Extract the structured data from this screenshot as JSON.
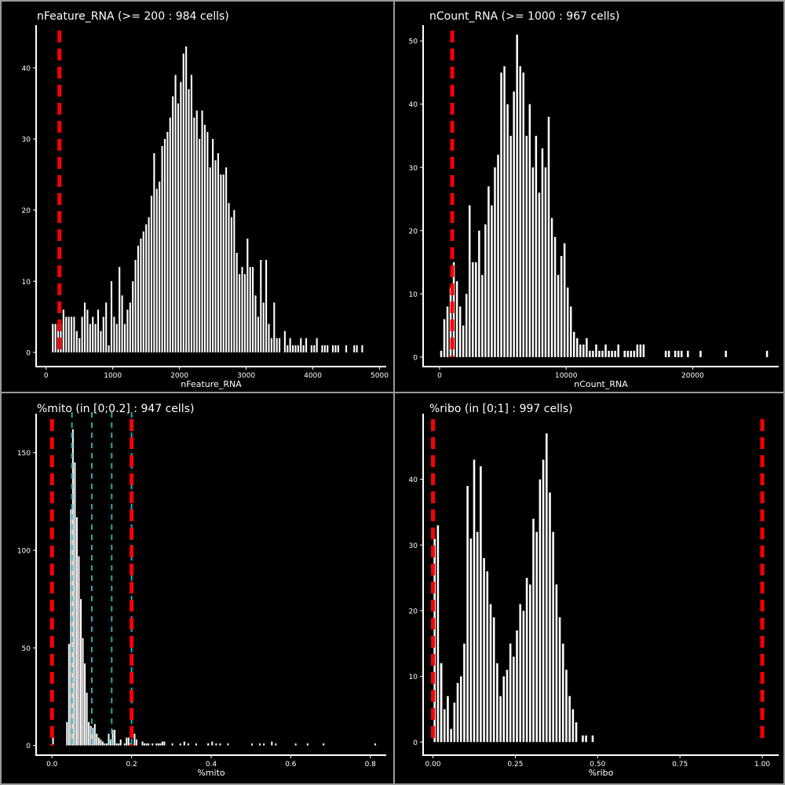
{
  "chart_data": [
    {
      "type": "bar",
      "title": "nFeature_RNA (>= 200 : 984 cells)",
      "xlabel": "nFeature_RNA",
      "ylabel": "",
      "xlim": [
        -150,
        5100
      ],
      "ylim": [
        -2,
        46
      ],
      "xticks": [
        0,
        1000,
        2000,
        3000,
        4000,
        5000
      ],
      "xtick_labels": [
        "0",
        "1000",
        "2000",
        "3000",
        "4000",
        "5000"
      ],
      "yticks": [
        0,
        10,
        20,
        30,
        40
      ],
      "ytick_labels": [
        "0",
        "10",
        "20",
        "30",
        "40"
      ],
      "bin_width": 40,
      "bins_x": [
        80,
        120,
        160,
        200,
        240,
        280,
        320,
        360,
        400,
        440,
        480,
        520,
        560,
        600,
        640,
        680,
        720,
        760,
        800,
        840,
        880,
        920,
        960,
        1000,
        1040,
        1080,
        1120,
        1160,
        1200,
        1240,
        1280,
        1320,
        1360,
        1400,
        1440,
        1480,
        1520,
        1560,
        1600,
        1640,
        1680,
        1720,
        1760,
        1800,
        1840,
        1880,
        1920,
        1960,
        2000,
        2040,
        2080,
        2120,
        2160,
        2200,
        2240,
        2280,
        2320,
        2360,
        2400,
        2440,
        2480,
        2520,
        2560,
        2600,
        2640,
        2680,
        2720,
        2760,
        2800,
        2840,
        2880,
        2920,
        2960,
        3000,
        3040,
        3080,
        3120,
        3160,
        3200,
        3240,
        3280,
        3320,
        3360,
        3400,
        3440,
        3480,
        3520,
        3560,
        3600,
        3640,
        3680,
        3720,
        3760,
        3800,
        3840,
        3880,
        3920,
        3960,
        4000,
        4040,
        4080,
        4120,
        4160,
        4200,
        4240,
        4280,
        4320,
        4360,
        4400,
        4440,
        4480,
        4520,
        4560,
        4600,
        4640,
        4680,
        4720,
        4760,
        4800,
        4840,
        4880
      ],
      "counts": [
        4,
        4,
        4,
        4,
        6,
        5,
        5,
        5,
        5,
        3,
        2,
        5,
        7,
        6,
        4,
        5,
        4,
        6,
        3,
        5,
        7,
        1,
        10,
        5,
        4,
        12,
        8,
        4,
        6,
        7,
        10,
        13,
        15,
        16,
        17,
        18,
        19,
        22,
        28,
        23,
        24,
        29,
        30,
        31,
        33,
        36,
        39,
        35,
        38,
        42,
        43,
        37,
        39,
        33,
        34,
        30,
        34,
        32,
        31,
        26,
        30,
        27,
        28,
        25,
        25,
        26,
        21,
        19,
        20,
        14,
        11,
        12,
        11,
        16,
        12,
        12,
        8,
        5,
        13,
        7,
        13,
        4,
        2,
        7,
        2,
        2,
        0,
        3,
        1,
        2,
        1,
        1,
        1,
        2,
        1,
        2,
        0,
        1,
        1,
        2,
        0,
        1,
        1,
        1,
        0,
        1,
        1,
        1,
        0,
        0,
        0,
        0,
        0,
        0,
        0,
        0,
        0,
        0,
        0,
        0,
        0
      ],
      "sparse_x": [
        4480,
        4600,
        4640,
        4720
      ],
      "sparse_counts": [
        1,
        1,
        1,
        1
      ],
      "threshold_lines": [
        200
      ]
    },
    {
      "type": "bar",
      "title": "nCount_RNA (>= 1000 : 967 cells)",
      "xlabel": "nCount_RNA",
      "ylabel": "",
      "xlim": [
        -1300,
        26800
      ],
      "ylim": [
        -1.5,
        52.5
      ],
      "xticks": [
        0,
        10000,
        20000
      ],
      "xtick_labels": [
        "0",
        "10000",
        "20000"
      ],
      "yticks": [
        0,
        10,
        20,
        30,
        40,
        50
      ],
      "ytick_labels": [
        "0",
        "10",
        "20",
        "30",
        "40",
        "50"
      ],
      "bin_width": 250,
      "bins_x": [
        0,
        250,
        500,
        750,
        1000,
        1250,
        1500,
        1750,
        2000,
        2250,
        2500,
        2750,
        3000,
        3250,
        3500,
        3750,
        4000,
        4250,
        4500,
        4750,
        5000,
        5250,
        5500,
        5750,
        6000,
        6250,
        6500,
        6750,
        7000,
        7250,
        7500,
        7750,
        8000,
        8250,
        8500,
        8750,
        9000,
        9250,
        9500,
        9750,
        10000,
        10250,
        10500,
        10750,
        11000,
        11250,
        11500,
        11750,
        12000,
        12250,
        12500,
        12750,
        13000,
        13250,
        13500,
        13750,
        14000,
        14250,
        14500,
        14750,
        15000,
        15250,
        15500,
        15750,
        16000,
        16250,
        16500,
        16750,
        17000,
        17250,
        17500,
        17750,
        18000,
        18250,
        18500,
        18750,
        19000,
        19250,
        19500,
        19750,
        20000,
        20250,
        20500
      ],
      "counts": [
        1,
        6,
        8,
        11,
        15,
        12,
        8,
        5,
        10,
        24,
        15,
        15,
        20,
        13,
        21,
        27,
        24,
        30,
        32,
        45,
        46,
        40,
        35,
        42,
        51,
        46,
        45,
        35,
        40,
        30,
        35,
        26,
        33,
        30,
        38,
        22,
        19,
        13,
        16,
        18,
        11,
        8,
        4,
        3,
        2,
        2,
        3,
        1,
        1,
        2,
        1,
        1,
        2,
        1,
        1,
        1,
        2,
        0,
        1,
        1,
        1,
        1,
        2,
        2,
        2,
        0,
        0,
        0,
        0,
        0,
        0,
        1,
        1,
        0,
        1,
        1,
        1,
        0,
        1,
        0,
        0,
        0,
        1
      ],
      "sparse_x": [
        22500,
        25750
      ],
      "sparse_counts": [
        1,
        1
      ],
      "threshold_lines": [
        1000
      ]
    },
    {
      "type": "bar",
      "title": "%mito (in [0;0.2] : 947 cells)",
      "xlabel": "%mito",
      "ylabel": "",
      "xlim": [
        -0.04,
        0.84
      ],
      "ylim": [
        -5,
        170
      ],
      "xticks": [
        0,
        0.2,
        0.4,
        0.6,
        0.8
      ],
      "xtick_labels": [
        "0.0",
        "0.2",
        "0.4",
        "0.6",
        "0.8"
      ],
      "yticks": [
        0,
        50,
        100,
        150
      ],
      "ytick_labels": [
        "0",
        "50",
        "100",
        "150"
      ],
      "bin_width": 0.005,
      "bins_x": [
        0.0,
        0.005,
        0.01,
        0.015,
        0.02,
        0.025,
        0.03,
        0.035,
        0.04,
        0.045,
        0.05,
        0.055,
        0.06,
        0.065,
        0.07,
        0.075,
        0.08,
        0.085,
        0.09,
        0.095,
        0.1,
        0.105,
        0.11,
        0.115,
        0.12,
        0.125,
        0.13,
        0.135,
        0.14,
        0.145,
        0.15,
        0.155,
        0.16,
        0.165,
        0.17,
        0.175,
        0.18,
        0.185,
        0.19,
        0.195,
        0.2,
        0.205,
        0.21,
        0.215,
        0.22,
        0.225,
        0.23,
        0.235,
        0.24,
        0.245,
        0.25,
        0.255,
        0.26,
        0.265,
        0.27,
        0.275,
        0.28
      ],
      "counts": [
        4,
        0,
        0,
        0,
        0,
        0,
        0,
        12,
        52,
        121,
        162,
        145,
        117,
        97,
        75,
        55,
        42,
        27,
        12,
        10,
        9,
        11,
        6,
        4,
        3,
        2,
        1,
        1,
        6,
        3,
        8,
        8,
        1,
        1,
        3,
        0,
        1,
        4,
        4,
        1,
        0,
        6,
        3,
        0,
        0,
        2,
        1,
        1,
        1,
        0,
        1,
        0,
        1,
        1,
        1,
        2,
        2
      ],
      "sparse_x": [
        0.3,
        0.32,
        0.33,
        0.34,
        0.36,
        0.39,
        0.39,
        0.4,
        0.41,
        0.42,
        0.44,
        0.5,
        0.52,
        0.53,
        0.55,
        0.56,
        0.61,
        0.64,
        0.68,
        0.81
      ],
      "sparse_counts": [
        1,
        1,
        2,
        1,
        1,
        1,
        1,
        2,
        1,
        1,
        1,
        1,
        1,
        1,
        2,
        1,
        1,
        1,
        1,
        1
      ],
      "threshold_lines": [
        0,
        0.2
      ],
      "reference_lines": [
        0.05,
        0.1,
        0.15,
        0.2
      ]
    },
    {
      "type": "bar",
      "title": "%ribo (in [0;1] : 997 cells)",
      "xlabel": "%ribo",
      "ylabel": "",
      "xlim": [
        -0.03,
        1.05
      ],
      "ylim": [
        -2,
        50
      ],
      "xticks": [
        0,
        0.25,
        0.5,
        0.75,
        1.0
      ],
      "xtick_labels": [
        "0.00",
        "0.25",
        "0.50",
        "0.75",
        "1.00"
      ],
      "yticks": [
        0,
        10,
        20,
        30,
        40
      ],
      "ytick_labels": [
        "0",
        "10",
        "20",
        "30",
        "40"
      ],
      "bin_width": 0.01,
      "bins_x": [
        0.0,
        0.01,
        0.02,
        0.03,
        0.04,
        0.05,
        0.06,
        0.07,
        0.08,
        0.09,
        0.1,
        0.11,
        0.12,
        0.13,
        0.14,
        0.15,
        0.16,
        0.17,
        0.18,
        0.19,
        0.2,
        0.21,
        0.22,
        0.23,
        0.24,
        0.25,
        0.26,
        0.27,
        0.28,
        0.29,
        0.3,
        0.31,
        0.32,
        0.33,
        0.34,
        0.35,
        0.36,
        0.37,
        0.38,
        0.39,
        0.4,
        0.41,
        0.42,
        0.43,
        0.44,
        0.45,
        0.46,
        0.47,
        0.48,
        0.49
      ],
      "counts": [
        31,
        33,
        12,
        5,
        7,
        2,
        6,
        9,
        10,
        15,
        39,
        31,
        43,
        32,
        42,
        28,
        26,
        21,
        19,
        12,
        7,
        10,
        11,
        15,
        13,
        17,
        21,
        20,
        25,
        24,
        34,
        32,
        40,
        43,
        47,
        38,
        32,
        24,
        19,
        15,
        11,
        7,
        5,
        3,
        0,
        1,
        1,
        0,
        1,
        0
      ],
      "sparse_x": [
        0.02
      ],
      "sparse_counts": [
        12
      ],
      "threshold_lines": [
        0,
        1.0
      ]
    }
  ],
  "colors": {
    "background": "#000000",
    "bars": "#ffffff",
    "text": "#ffffff",
    "threshold": "#ff0000",
    "reference": "#2aa8b0",
    "divider": "#9a9a9a"
  }
}
